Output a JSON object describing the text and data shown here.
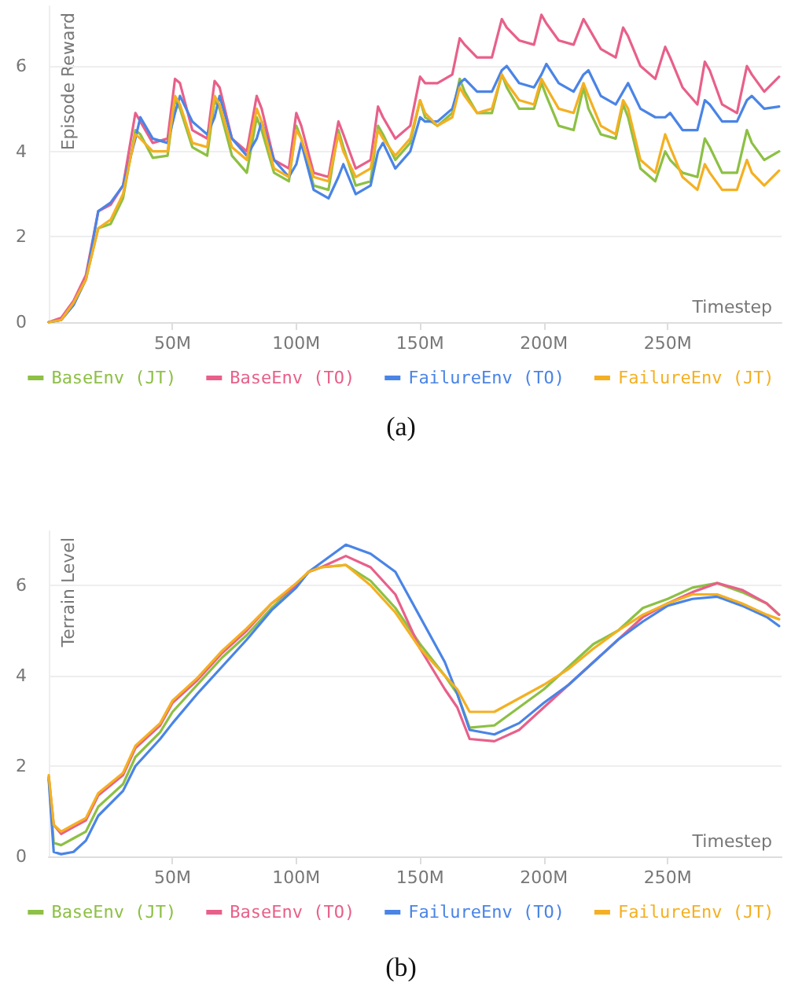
{
  "chart_data": [
    {
      "type": "line",
      "ylabel": "Episode Reward",
      "xlabel": "Timestep",
      "annotations": [
        "(a)"
      ],
      "legend": "bottom",
      "grid": "y",
      "marker": "none",
      "line_style": "solid",
      "xlim": [
        0,
        296
      ],
      "ylim": [
        0,
        7.4
      ],
      "xticks": [
        {
          "value": 50,
          "label": "50M"
        },
        {
          "value": 100,
          "label": "100M"
        },
        {
          "value": 150,
          "label": "150M"
        },
        {
          "value": 200,
          "label": "200M"
        },
        {
          "value": 250,
          "label": "250M"
        }
      ],
      "yticks": [
        0,
        2,
        4,
        6
      ],
      "x": [
        0,
        5,
        10,
        15,
        20,
        25,
        30,
        35,
        37,
        42,
        48,
        51,
        53,
        58,
        64,
        67,
        69,
        74,
        80,
        84,
        86,
        91,
        97,
        100,
        102,
        107,
        113,
        117,
        119,
        124,
        130,
        133,
        135,
        140,
        146,
        150,
        152,
        157,
        163,
        166,
        168,
        173,
        179,
        183,
        185,
        190,
        196,
        199,
        201,
        206,
        212,
        216,
        218,
        223,
        229,
        232,
        234,
        239,
        245,
        249,
        251,
        256,
        262,
        265,
        267,
        272,
        278,
        282,
        284,
        289,
        295
      ],
      "series": [
        {
          "name": "BaseEnv (JT)",
          "color": "#8dc044",
          "values": [
            0,
            0.05,
            0.4,
            1.0,
            2.2,
            2.3,
            2.9,
            4.5,
            4.4,
            3.85,
            3.9,
            5.2,
            5.0,
            4.1,
            3.9,
            5.2,
            5.0,
            3.9,
            3.5,
            4.8,
            4.5,
            3.5,
            3.3,
            4.6,
            4.3,
            3.2,
            3.1,
            4.5,
            4.1,
            3.2,
            3.3,
            4.6,
            4.4,
            3.8,
            4.2,
            5.2,
            4.8,
            4.6,
            4.9,
            5.7,
            5.4,
            4.9,
            4.9,
            5.8,
            5.5,
            5.0,
            5.0,
            5.6,
            5.3,
            4.6,
            4.5,
            5.5,
            5.0,
            4.4,
            4.3,
            5.1,
            4.8,
            3.6,
            3.3,
            4.0,
            3.8,
            3.5,
            3.4,
            4.3,
            4.1,
            3.5,
            3.5,
            4.5,
            4.2,
            3.8,
            4.0
          ]
        },
        {
          "name": "BaseEnv (TO)",
          "color": "#e8608a",
          "values": [
            0,
            0.1,
            0.5,
            1.1,
            2.6,
            2.75,
            3.2,
            4.9,
            4.7,
            4.2,
            4.3,
            5.7,
            5.6,
            4.5,
            4.3,
            5.65,
            5.5,
            4.3,
            4.0,
            5.3,
            5.0,
            3.8,
            3.6,
            4.9,
            4.6,
            3.5,
            3.4,
            4.7,
            4.4,
            3.6,
            3.8,
            5.05,
            4.8,
            4.3,
            4.6,
            5.75,
            5.6,
            5.6,
            5.8,
            6.65,
            6.5,
            6.2,
            6.2,
            7.1,
            6.9,
            6.6,
            6.5,
            7.2,
            7.0,
            6.6,
            6.5,
            7.1,
            6.9,
            6.4,
            6.2,
            6.9,
            6.7,
            6.0,
            5.7,
            6.45,
            6.2,
            5.5,
            5.1,
            6.1,
            5.9,
            5.1,
            4.9,
            6.0,
            5.8,
            5.4,
            5.75
          ]
        },
        {
          "name": "FailureEnv (TO)",
          "color": "#4a84e6",
          "values": [
            0,
            0.05,
            0.4,
            1.0,
            2.6,
            2.8,
            3.2,
            4.3,
            4.8,
            4.3,
            4.2,
            4.9,
            5.3,
            4.7,
            4.4,
            4.8,
            5.3,
            4.3,
            3.9,
            4.3,
            4.7,
            3.8,
            3.4,
            3.7,
            4.2,
            3.1,
            2.9,
            3.4,
            3.7,
            3.0,
            3.2,
            4.0,
            4.2,
            3.6,
            4.0,
            4.8,
            4.7,
            4.7,
            5.0,
            5.6,
            5.7,
            5.4,
            5.4,
            5.9,
            6.0,
            5.6,
            5.5,
            5.8,
            6.05,
            5.6,
            5.4,
            5.8,
            5.9,
            5.3,
            5.1,
            5.4,
            5.6,
            5.0,
            4.8,
            4.8,
            4.9,
            4.5,
            4.5,
            5.2,
            5.1,
            4.7,
            4.7,
            5.2,
            5.3,
            5.0,
            5.05
          ]
        },
        {
          "name": "FailureEnv (JT)",
          "color": "#f4b022",
          "values": [
            0,
            0.05,
            0.45,
            1.0,
            2.2,
            2.4,
            3.0,
            4.4,
            4.3,
            4.0,
            4.0,
            5.3,
            5.1,
            4.2,
            4.1,
            5.3,
            5.1,
            4.1,
            3.8,
            5.0,
            4.7,
            3.6,
            3.4,
            4.5,
            4.3,
            3.4,
            3.3,
            4.4,
            4.0,
            3.4,
            3.6,
            4.5,
            4.3,
            3.9,
            4.3,
            5.2,
            4.9,
            4.6,
            4.8,
            5.5,
            5.3,
            4.9,
            5.0,
            5.8,
            5.6,
            5.2,
            5.1,
            5.7,
            5.5,
            5.0,
            4.9,
            5.6,
            5.3,
            4.6,
            4.4,
            5.2,
            5.0,
            3.8,
            3.5,
            4.4,
            4.1,
            3.4,
            3.1,
            3.7,
            3.5,
            3.1,
            3.1,
            3.8,
            3.5,
            3.2,
            3.55
          ]
        }
      ]
    },
    {
      "type": "line",
      "ylabel": "Terrain Level",
      "xlabel": "Timestep",
      "annotations": [
        "(b)"
      ],
      "legend": "bottom",
      "grid": "y",
      "marker": "none",
      "line_style": "solid",
      "xlim": [
        0,
        296
      ],
      "ylim": [
        0,
        7.2
      ],
      "xticks": [
        {
          "value": 50,
          "label": "50M"
        },
        {
          "value": 100,
          "label": "100M"
        },
        {
          "value": 150,
          "label": "150M"
        },
        {
          "value": 200,
          "label": "200M"
        },
        {
          "value": 250,
          "label": "250M"
        }
      ],
      "yticks": [
        0,
        2,
        4,
        6
      ],
      "x": [
        0,
        2,
        5,
        10,
        15,
        20,
        30,
        35,
        45,
        50,
        60,
        70,
        80,
        90,
        100,
        105,
        110,
        120,
        130,
        140,
        150,
        160,
        165,
        170,
        180,
        190,
        200,
        210,
        220,
        230,
        240,
        250,
        260,
        270,
        280,
        290,
        295
      ],
      "series": [
        {
          "name": "BaseEnv (JT)",
          "color": "#8dc044",
          "values": [
            1.75,
            0.3,
            0.25,
            0.4,
            0.55,
            1.1,
            1.6,
            2.2,
            2.75,
            3.2,
            3.8,
            4.4,
            4.9,
            5.5,
            6.0,
            6.3,
            6.4,
            6.45,
            6.1,
            5.5,
            4.7,
            4.0,
            3.6,
            2.85,
            2.9,
            3.3,
            3.7,
            4.2,
            4.7,
            5.0,
            5.5,
            5.7,
            5.95,
            6.05,
            5.85,
            5.6,
            5.35
          ]
        },
        {
          "name": "BaseEnv (TO)",
          "color": "#e8608a",
          "values": [
            1.75,
            0.7,
            0.5,
            0.65,
            0.8,
            1.35,
            1.8,
            2.4,
            2.9,
            3.4,
            3.9,
            4.5,
            5.0,
            5.6,
            6.0,
            6.3,
            6.4,
            6.65,
            6.4,
            5.8,
            4.6,
            3.7,
            3.3,
            2.6,
            2.55,
            2.8,
            3.3,
            3.8,
            4.3,
            4.8,
            5.3,
            5.6,
            5.85,
            6.05,
            5.9,
            5.6,
            5.35
          ]
        },
        {
          "name": "FailureEnv (TO)",
          "color": "#4a84e6",
          "values": [
            1.7,
            0.1,
            0.05,
            0.1,
            0.35,
            0.9,
            1.45,
            2.0,
            2.6,
            2.95,
            3.6,
            4.2,
            4.8,
            5.45,
            5.95,
            6.3,
            6.5,
            6.9,
            6.7,
            6.3,
            5.3,
            4.3,
            3.6,
            2.8,
            2.7,
            2.95,
            3.4,
            3.8,
            4.3,
            4.8,
            5.2,
            5.55,
            5.7,
            5.75,
            5.55,
            5.3,
            5.1
          ]
        },
        {
          "name": "FailureEnv (JT)",
          "color": "#f4b022",
          "values": [
            1.8,
            0.7,
            0.55,
            0.7,
            0.85,
            1.4,
            1.85,
            2.45,
            2.95,
            3.45,
            3.95,
            4.55,
            5.05,
            5.6,
            6.05,
            6.3,
            6.4,
            6.45,
            6.0,
            5.4,
            4.6,
            4.0,
            3.7,
            3.2,
            3.2,
            3.5,
            3.8,
            4.15,
            4.6,
            5.0,
            5.35,
            5.6,
            5.8,
            5.8,
            5.6,
            5.35,
            5.25
          ]
        }
      ]
    }
  ]
}
